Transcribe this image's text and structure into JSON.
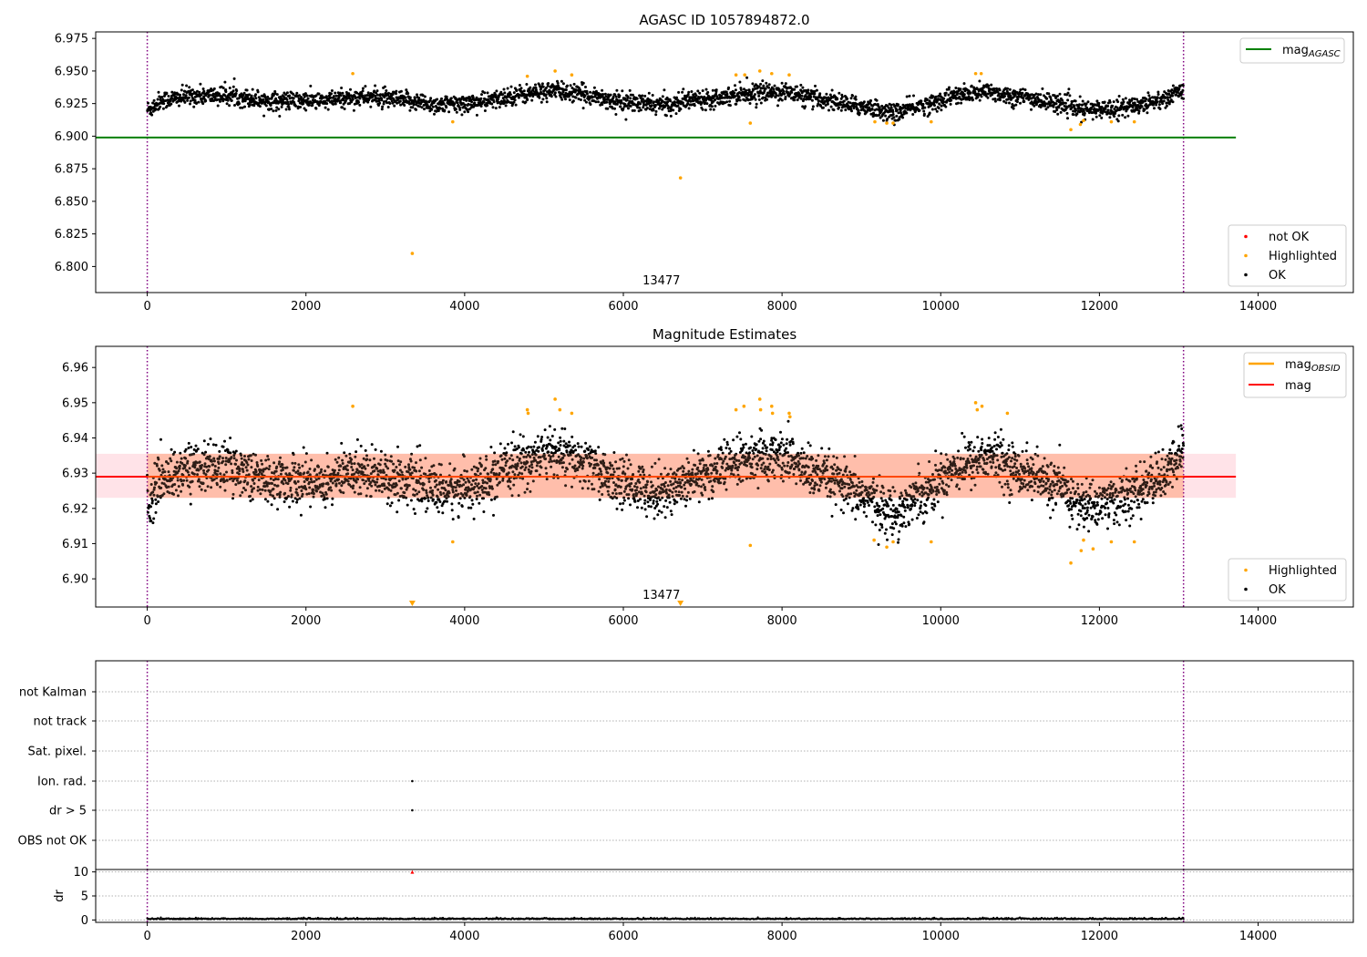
{
  "colors": {
    "ok": "#000000",
    "highlighted": "#ffa500",
    "not_ok": "#ff0000",
    "mag_agasc": "#008000",
    "mag_obsid": "#ffa500",
    "mag": "#ff0000",
    "band_mag": "#ffc0cb",
    "band_obsid": "#ffa07a",
    "obs_boundary": "#800080"
  },
  "chart_data": [
    {
      "type": "scatter",
      "title": "AGASC ID 1057894872.0",
      "xlim": [
        -650,
        15200
      ],
      "ylim": [
        6.78,
        6.98
      ],
      "xticks": [
        "0",
        "2000",
        "4000",
        "6000",
        "8000",
        "10000",
        "12000",
        "14000"
      ],
      "yticks": [
        "6.800",
        "6.825",
        "6.850",
        "6.875",
        "6.900",
        "6.925",
        "6.950",
        "6.975"
      ],
      "obs_boundaries_x": [
        0,
        13060
      ],
      "obsid_label": "13477",
      "obsid_label_x": 6480,
      "mag_agasc": {
        "value": 6.899,
        "x_range": [
          -650,
          13720
        ]
      },
      "highlighted_points": [
        [
          2590,
          6.948
        ],
        [
          3340,
          6.81
        ],
        [
          3850,
          6.911
        ],
        [
          4790,
          6.946
        ],
        [
          5140,
          6.95
        ],
        [
          5350,
          6.947
        ],
        [
          6720,
          6.868
        ],
        [
          7420,
          6.947
        ],
        [
          7530,
          6.947
        ],
        [
          7600,
          6.91
        ],
        [
          7720,
          6.95
        ],
        [
          7870,
          6.948
        ],
        [
          8090,
          6.947
        ],
        [
          9170,
          6.911
        ],
        [
          9320,
          6.91
        ],
        [
          9400,
          6.91
        ],
        [
          9880,
          6.911
        ],
        [
          10440,
          6.948
        ],
        [
          10510,
          6.948
        ],
        [
          11640,
          6.905
        ],
        [
          11760,
          6.909
        ],
        [
          11800,
          6.912
        ],
        [
          12150,
          6.911
        ],
        [
          12440,
          6.911
        ]
      ],
      "legend_lines": [
        {
          "label": "mag",
          "subscript": "AGASC"
        }
      ],
      "legend_points": [
        "not OK",
        "Highlighted",
        "OK"
      ]
    },
    {
      "type": "scatter",
      "title": "Magnitude Estimates",
      "xlim": [
        -650,
        15200
      ],
      "ylim": [
        6.892,
        6.966
      ],
      "xticks": [
        "0",
        "2000",
        "4000",
        "6000",
        "8000",
        "10000",
        "12000",
        "14000"
      ],
      "yticks": [
        "6.90",
        "6.91",
        "6.92",
        "6.93",
        "6.94",
        "6.95",
        "6.96"
      ],
      "obs_boundaries_x": [
        0,
        13060
      ],
      "obsid_label": "13477",
      "obsid_label_x": 6480,
      "mag": {
        "value": 6.929,
        "x_range": [
          -650,
          13720
        ]
      },
      "mag_band": [
        6.923,
        6.9355
      ],
      "mag_obsid": {
        "value": 6.929,
        "band": [
          6.923,
          6.9355
        ],
        "x_range": [
          0,
          13060
        ]
      },
      "highlighted_points": [
        [
          2590,
          6.949
        ],
        [
          3850,
          6.9105
        ],
        [
          4790,
          6.948
        ],
        [
          4800,
          6.947
        ],
        [
          5140,
          6.951
        ],
        [
          5200,
          6.948
        ],
        [
          5350,
          6.947
        ],
        [
          7420,
          6.948
        ],
        [
          7520,
          6.949
        ],
        [
          7600,
          6.9095
        ],
        [
          7720,
          6.951
        ],
        [
          7730,
          6.948
        ],
        [
          7870,
          6.949
        ],
        [
          7880,
          6.947
        ],
        [
          8090,
          6.947
        ],
        [
          8100,
          6.946
        ],
        [
          9160,
          6.911
        ],
        [
          9320,
          6.909
        ],
        [
          9400,
          6.9105
        ],
        [
          9880,
          6.9105
        ],
        [
          10440,
          6.95
        ],
        [
          10460,
          6.948
        ],
        [
          10520,
          6.949
        ],
        [
          10840,
          6.947
        ],
        [
          11640,
          6.9045
        ],
        [
          11770,
          6.908
        ],
        [
          11800,
          6.911
        ],
        [
          11920,
          6.9085
        ],
        [
          12150,
          6.9105
        ],
        [
          12440,
          6.9105
        ]
      ],
      "clipped_markers_x": [
        3340,
        6720
      ],
      "legend_lines": [
        {
          "label": "mag",
          "subscript": "OBSID"
        },
        {
          "label": "mag",
          "subscript": ""
        }
      ],
      "legend_points": [
        "Highlighted",
        "OK"
      ]
    },
    {
      "type": "scatter",
      "title": "",
      "xlim": [
        -650,
        15200
      ],
      "categories": [
        "not Kalman",
        "not track",
        "Sat. pixel.",
        "Ion. rad.",
        "dr > 5",
        "OBS not OK"
      ],
      "flag_points": [
        {
          "category": "Ion. rad.",
          "x": 3340
        },
        {
          "category": "dr > 5",
          "x": 3340
        }
      ],
      "obs_boundaries_x": [
        0,
        13060
      ]
    },
    {
      "type": "scatter",
      "title": "",
      "ylabel": "dr",
      "xlim": [
        -650,
        15200
      ],
      "ylim": [
        -0.5,
        10.5
      ],
      "xticks": [
        "0",
        "2000",
        "4000",
        "6000",
        "8000",
        "10000",
        "12000",
        "14000"
      ],
      "yticks": [
        "0",
        "5",
        "10"
      ],
      "not_ok_points": [
        [
          3340,
          10
        ]
      ],
      "obs_boundaries_x": [
        0,
        13060
      ]
    }
  ]
}
